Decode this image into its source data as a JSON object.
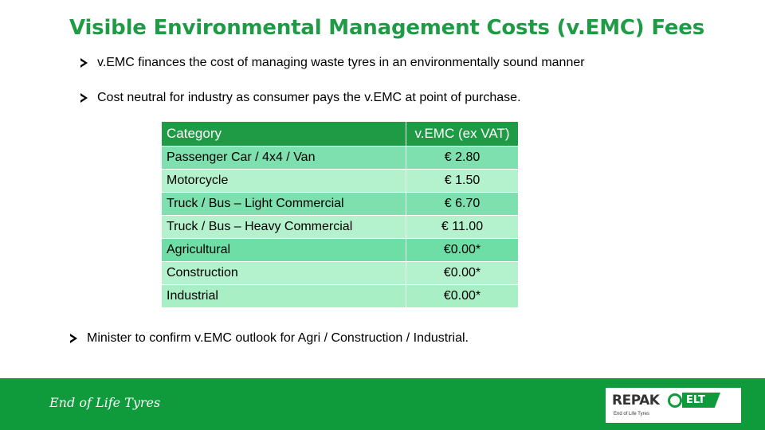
{
  "title": "Visible Environmental Management Costs (v.EMC) Fees",
  "bullets": [
    "v.EMC finances the cost of managing waste tyres in an environmentally sound manner",
    "Cost neutral for industry as consumer pays the v.EMC at point of purchase.",
    "Minister to confirm v.EMC outlook for Agri / Construction / Industrial."
  ],
  "table": {
    "headers": [
      "Category",
      "v.EMC (ex VAT)"
    ],
    "rows": [
      {
        "category": "Passenger Car / 4x4 / Van",
        "value": "€ 2.80"
      },
      {
        "category": "Motorcycle",
        "value": "€ 1.50"
      },
      {
        "category": "Truck / Bus – Light Commercial",
        "value": "€ 6.70"
      },
      {
        "category": "Truck / Bus – Heavy Commercial",
        "value": "€ 11.00"
      },
      {
        "category": "Agricultural",
        "value": "€0.00*"
      },
      {
        "category": "Construction",
        "value": "€0.00*"
      },
      {
        "category": "Industrial",
        "value": "€0.00*"
      }
    ]
  },
  "footer": {
    "text": "End of Life Tyres",
    "logo": {
      "brand": "REPAK",
      "tag": "ELT",
      "subtext": "End of Life Tyres"
    }
  },
  "colors": {
    "accent": "#1f9a45",
    "footer": "#0f9b3b",
    "row_dark": "#7ee0ae",
    "row_light": "#b4f2cd"
  }
}
